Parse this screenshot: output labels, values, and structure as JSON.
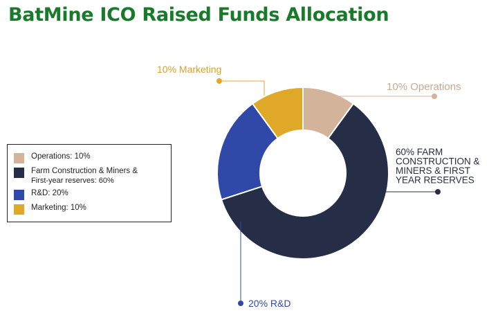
{
  "colors": {
    "title": "#1a7a2b",
    "operations": "#d3b49b",
    "farm": "#262d46",
    "rd": "#3049a8",
    "marketing": "#dfa829"
  },
  "chart_data": {
    "type": "pie",
    "title": "BatMine ICO Raised Funds Allocation",
    "donut": true,
    "slices": [
      {
        "key": "operations",
        "label": "Operations",
        "value": 10,
        "color": "#d3b49b",
        "callout": [
          "10% Operations"
        ]
      },
      {
        "key": "farm",
        "label": "Farm Construction & Miners & First-year reserves",
        "value": 60,
        "color": "#262d46",
        "callout": [
          "60% FARM",
          "CONSTRUCTION &",
          "MINERS & FIRST",
          "YEAR RESERVES"
        ]
      },
      {
        "key": "rd",
        "label": "R&D",
        "value": 20,
        "color": "#3049a8",
        "callout": [
          "20% R&D"
        ]
      },
      {
        "key": "marketing",
        "label": "Marketing",
        "value": 10,
        "color": "#dfa829",
        "callout": [
          "10% Marketing"
        ]
      }
    ],
    "legend": {
      "placement": "left",
      "entries": [
        [
          "Operations: 10%"
        ],
        [
          "Farm Construction & Miners &",
          "First-year reserves: 60%"
        ],
        [
          "R&D: 20%"
        ],
        [
          "Marketing: 10%"
        ]
      ]
    }
  }
}
